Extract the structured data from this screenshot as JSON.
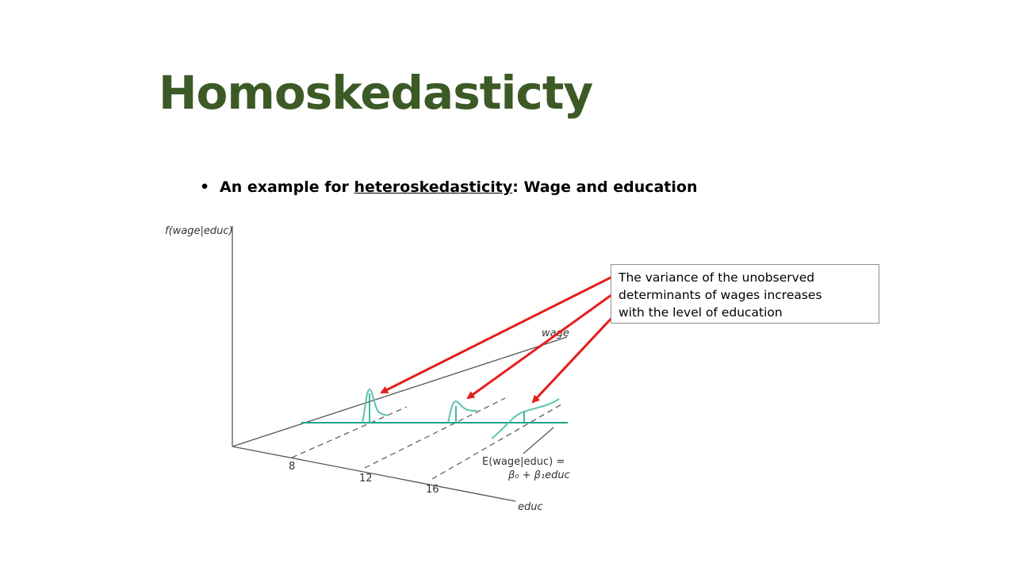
{
  "slide": {
    "title": "Homoskedasticty",
    "bullet_marker": "•",
    "bullet_prefix": "An example for ",
    "bullet_link": "heteroskedasticity",
    "bullet_suffix": ": Wage and education"
  },
  "diagram": {
    "y_axis_label": "f(wage|educ)",
    "depth_axis_label": "wage",
    "x_axis_label": "educ",
    "x_ticks": [
      "8",
      "12",
      "16"
    ],
    "regression_label_line1": "E(wage|educ) =",
    "regression_label_line2": "β₀ + β₁educ",
    "colors": {
      "axis": "#555555",
      "curve": "#5ec4ad",
      "regression": "#19a58a",
      "arrow": "#e41e1e"
    }
  },
  "callout": {
    "line1": "The variance of the unobserved",
    "line2": "determinants of wages increases",
    "line3": "with the level of education"
  }
}
